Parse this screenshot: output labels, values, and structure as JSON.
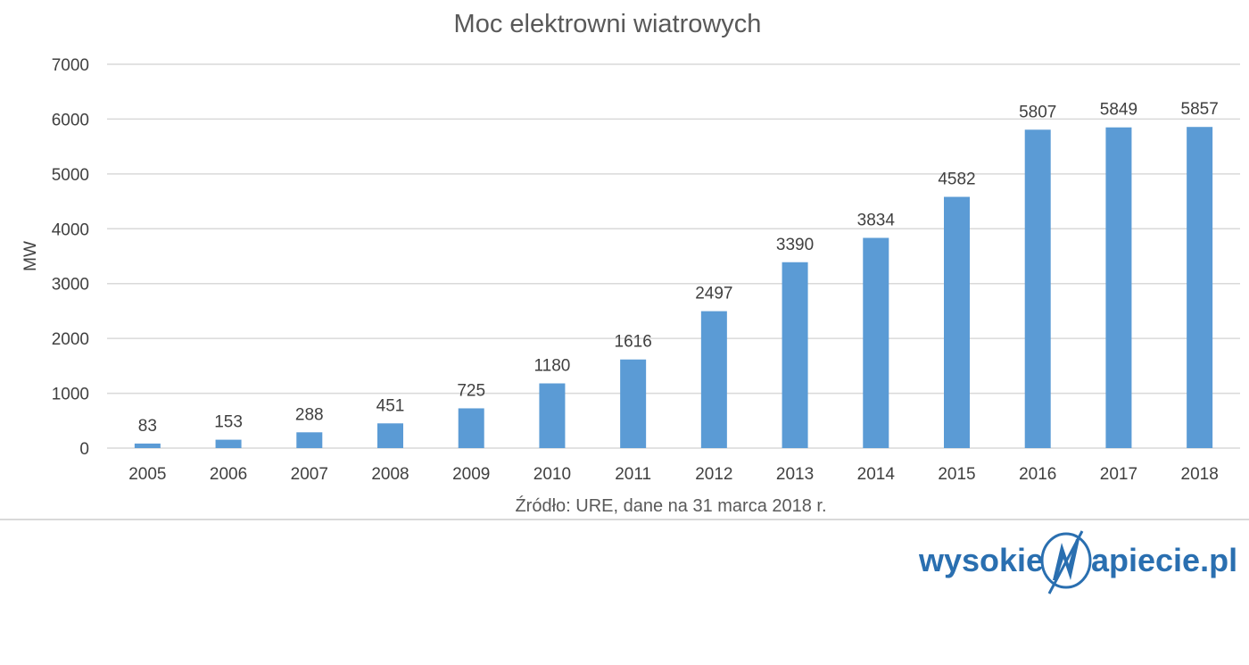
{
  "chart_data": {
    "type": "bar",
    "title": "Moc elektrowni wiatrowych",
    "xlabel": "",
    "ylabel": "MW",
    "categories": [
      "2005",
      "2006",
      "2007",
      "2008",
      "2009",
      "2010",
      "2011",
      "2012",
      "2013",
      "2014",
      "2015",
      "2016",
      "2017",
      "2018"
    ],
    "values": [
      83,
      153,
      288,
      451,
      725,
      1180,
      1616,
      2497,
      3390,
      3834,
      4582,
      5807,
      5849,
      5857
    ],
    "ylim": [
      0,
      7000
    ],
    "yticks": [
      0,
      1000,
      2000,
      3000,
      4000,
      5000,
      6000,
      7000
    ],
    "grid": true,
    "bar_color": "#5b9bd5",
    "source_note": "Źródło: URE, dane na 31 marca 2018 r."
  },
  "logo": {
    "part1": "wysokie",
    "part2": "apiecie.pl",
    "color": "#2a6fb0"
  }
}
